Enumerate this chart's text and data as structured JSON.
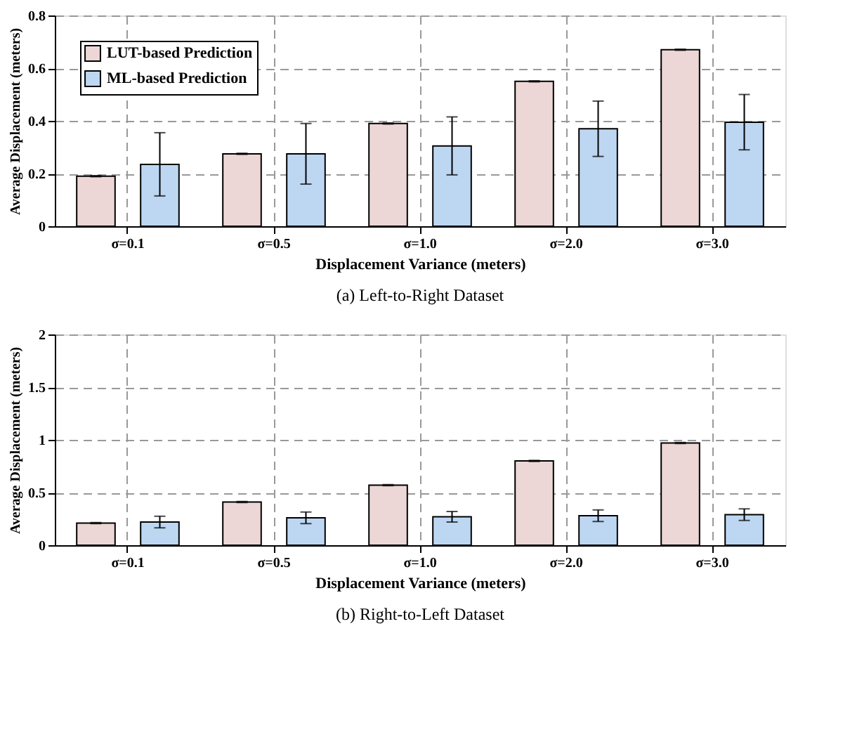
{
  "chart_data": [
    {
      "type": "bar",
      "title": "(a) Left-to-Right Dataset",
      "xlabel": "Displacement Variance (meters)",
      "ylabel": "Average Displacement (meters)",
      "categories": [
        "σ=0.1",
        "σ=0.5",
        "σ=1.0",
        "σ=2.0",
        "σ=3.0"
      ],
      "series": [
        {
          "name": "LUT-based Prediction",
          "color": "#ecd6d6",
          "values": [
            0.19,
            0.275,
            0.39,
            0.55,
            0.67
          ],
          "errors": [
            0.002,
            0.002,
            0.002,
            0.002,
            0.002
          ]
        },
        {
          "name": "ML-based Prediction",
          "color": "#bdd7f2",
          "values": [
            0.235,
            0.275,
            0.305,
            0.37,
            0.395
          ],
          "errors": [
            0.12,
            0.115,
            0.11,
            0.105,
            0.105
          ]
        }
      ],
      "ylim": [
        0,
        0.8
      ],
      "yticks": [
        0,
        0.2,
        0.4,
        0.6,
        0.8
      ],
      "grid": true,
      "legend": "top left"
    },
    {
      "type": "bar",
      "title": "(b) Right-to-Left Dataset",
      "xlabel": "Displacement Variance (meters)",
      "ylabel": "Average Displacement (meters)",
      "categories": [
        "σ=0.1",
        "σ=0.5",
        "σ=1.0",
        "σ=2.0",
        "σ=3.0"
      ],
      "series": [
        {
          "name": "LUT-based Prediction",
          "color": "#ecd6d6",
          "values": [
            0.21,
            0.41,
            0.57,
            0.8,
            0.97
          ],
          "errors": [
            0.005,
            0.005,
            0.005,
            0.005,
            0.005
          ]
        },
        {
          "name": "ML-based Prediction",
          "color": "#bdd7f2",
          "values": [
            0.22,
            0.26,
            0.27,
            0.28,
            0.29
          ],
          "errors": [
            0.055,
            0.055,
            0.05,
            0.055,
            0.055
          ]
        }
      ],
      "ylim": [
        0,
        2
      ],
      "yticks": [
        0,
        0.5,
        1,
        1.5,
        2
      ],
      "grid": true,
      "legend": "top left"
    }
  ]
}
